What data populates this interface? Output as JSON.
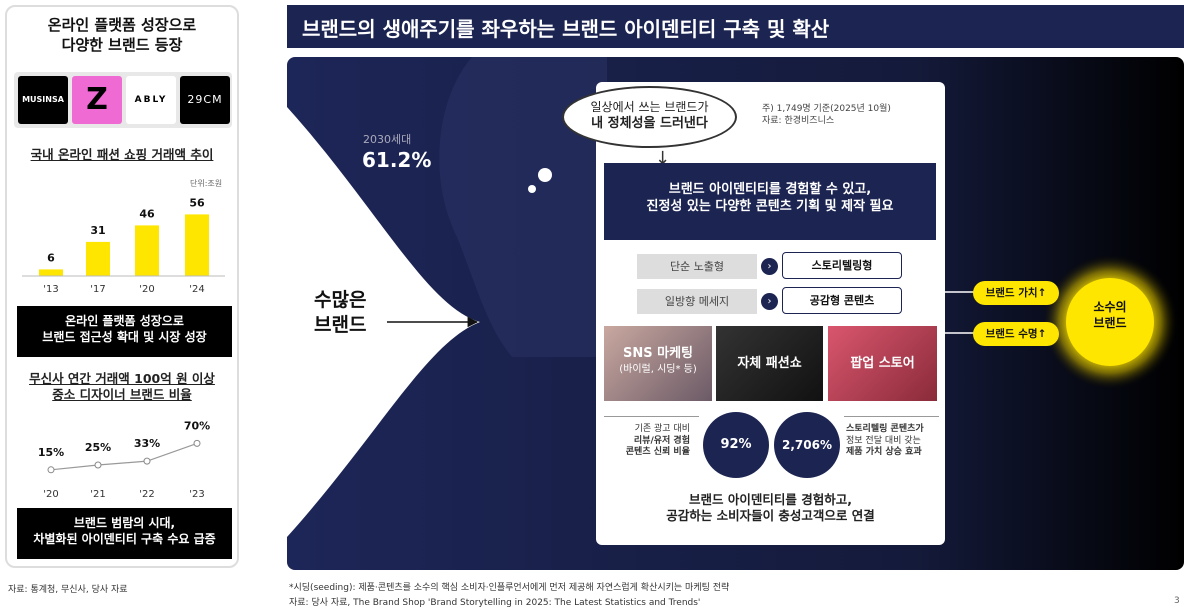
{
  "left_panel": {
    "heading": [
      "온라인 플랫폼 성장으로",
      "다양한 브랜드 등장"
    ],
    "logos": [
      "MUSINSA",
      "Z",
      "ABLY",
      "29CM"
    ],
    "bar_chart": {
      "title": "국내 온라인 패션 쇼핑 거래액 추이",
      "unit": "단위:조원",
      "categories": [
        "'13",
        "'17",
        "'20",
        "'24"
      ],
      "values": [
        6,
        31,
        46,
        56
      ]
    },
    "callout_1": [
      "온라인 플랫폼 성장으로",
      "브랜드 접근성 확대 및 시장 성장"
    ],
    "line_chart": {
      "title": [
        "무신사 연간 거래액 100억 원 이상",
        "중소 디자이너 브랜드 비율"
      ],
      "categories": [
        "'20",
        "'21",
        "'22",
        "'23"
      ],
      "values": [
        15,
        25,
        33,
        70
      ],
      "value_labels": [
        "15%",
        "25%",
        "33%",
        "70%"
      ]
    },
    "callout_2": [
      "브랜드 범람의 시대,",
      "차별화된 아이덴티티 구축 수요 급증"
    ],
    "source": "자료: 통계청, 무신사, 당사 자료"
  },
  "main": {
    "title": "브랜드의 생애주기를 좌우하는 브랜드 아이덴티티 구축 및 확산",
    "stat_label": "2030세대",
    "stat_value": "61.2%",
    "many_brands": [
      "수많은",
      "브랜드"
    ],
    "bubble": [
      "일상에서 쓰는 브랜드가",
      "내 정체성을 드러낸다"
    ],
    "note": [
      "주) 1,749명 기준(2025년 10월)",
      "자료: 한경비즈니스"
    ],
    "banner": [
      "브랜드 아이덴티티를 경험할 수 있고,",
      "진정성 있는 다양한 콘텐츠 기획 및 제작 필요"
    ],
    "shifts": [
      {
        "from": "단순 노출형",
        "to": "스토리텔링형"
      },
      {
        "from": "일방향 메세지",
        "to": "공감형 콘텐츠"
      }
    ],
    "tiles": [
      {
        "title": "SNS 마케팅",
        "sub": "(바이럴, 시딩* 등)"
      },
      {
        "title": "자체 패션쇼"
      },
      {
        "title": "팝업 스토어"
      }
    ],
    "stats": [
      {
        "desc": [
          "기존 광고 대비",
          "리뷰/유저 경험",
          "콘텐츠 신뢰 비율"
        ],
        "value": "92%"
      },
      {
        "desc": [
          "스토리텔링 콘텐츠가",
          "정보 전달 대비 갖는",
          "제품 가치 상승 효과"
        ],
        "value": "2,706%"
      }
    ],
    "conclusion": [
      "브랜드 아이덴티티를 경험하고,",
      "공감하는 소비자들이 충성고객으로 연결"
    ],
    "outcomes": [
      "브랜드 가치↑",
      "브랜드 수명↑"
    ],
    "target": [
      "소수의",
      "브랜드"
    ]
  },
  "footnotes": [
    "*시딩(seeding): 제품·콘텐츠를 소수의 핵심 소비자·인플루언서에게 먼저 제공해 자연스럽게 확산시키는 마케팅 전략",
    "자료: 당사 자료, The Brand Shop 'Brand Storytelling in 2025: The Latest Statistics and Trends'"
  ],
  "page_number": "3"
}
